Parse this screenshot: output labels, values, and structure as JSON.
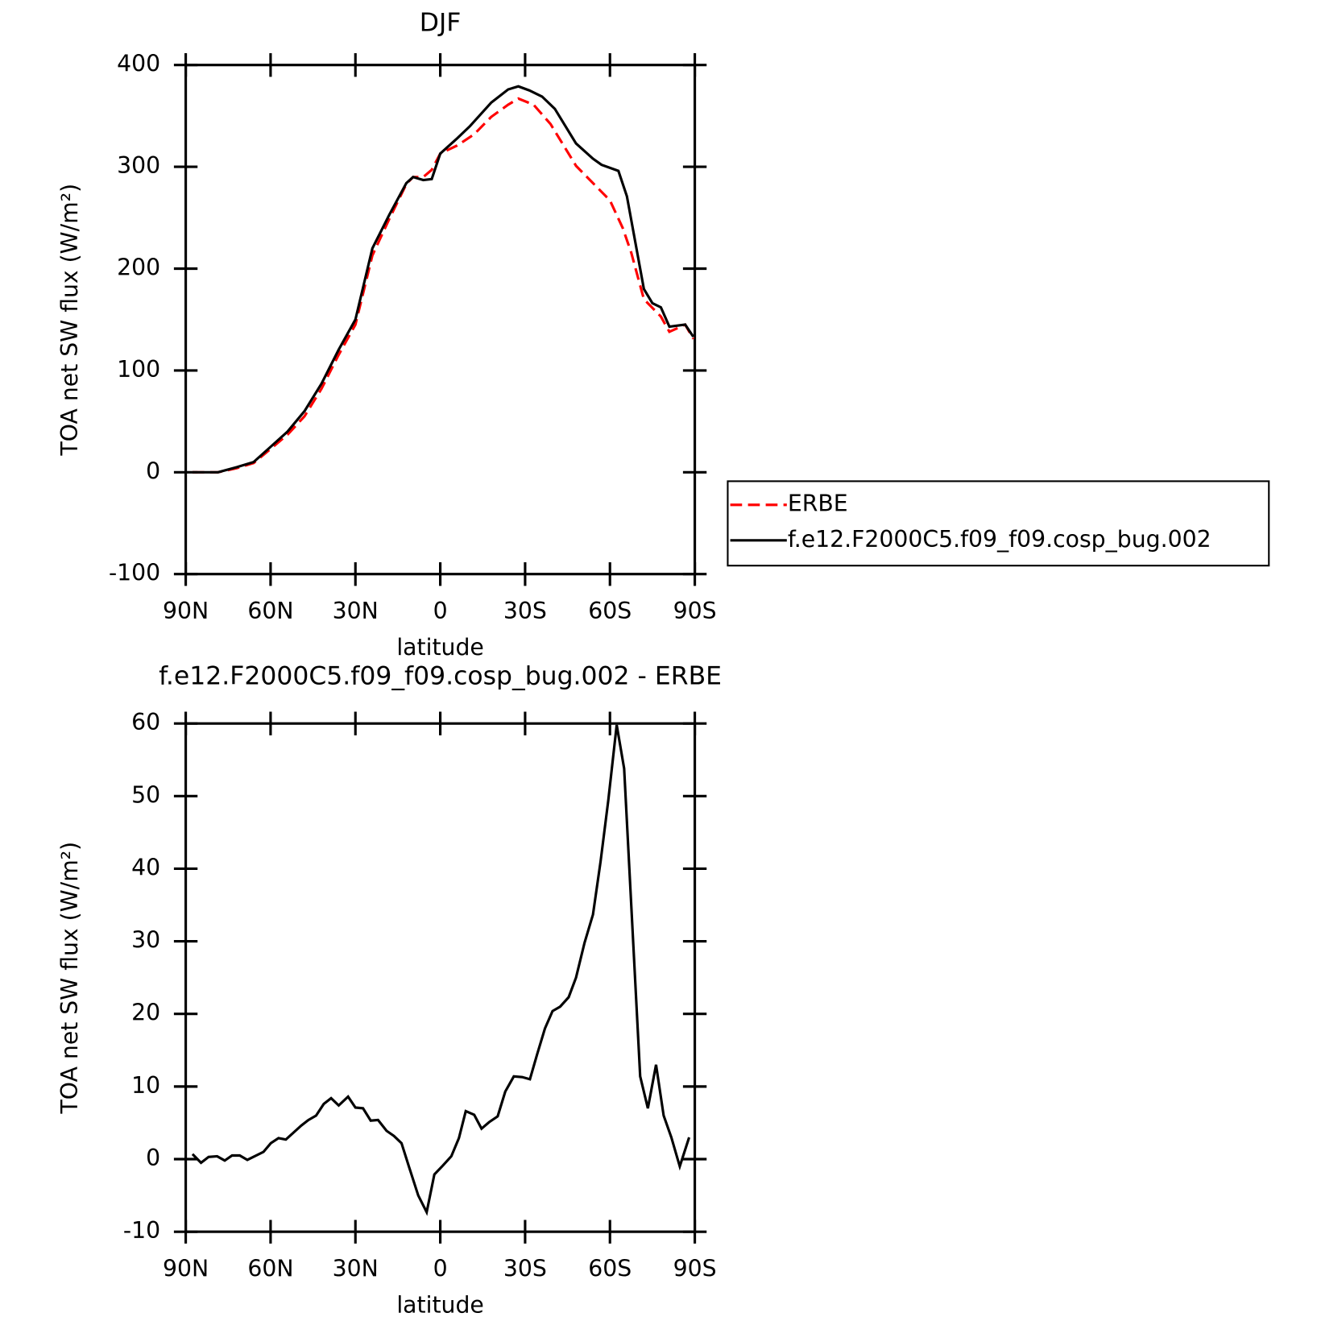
{
  "chart_data": [
    {
      "type": "line",
      "title": "DJF",
      "xlabel": "latitude",
      "ylabel": "TOA net SW flux (W/m²)",
      "xlim": [
        90,
        -90
      ],
      "xticks": [
        {
          "value": 90,
          "label": "90N"
        },
        {
          "value": 60,
          "label": "60N"
        },
        {
          "value": 30,
          "label": "30N"
        },
        0,
        {
          "value": -30,
          "label": "30S"
        },
        {
          "value": -60,
          "label": "60S"
        },
        {
          "value": -90,
          "label": "90S"
        }
      ],
      "ylim": [
        -100,
        400
      ],
      "yticks": [
        -100,
        0,
        100,
        200,
        300,
        400
      ],
      "legend": "right",
      "series": [
        {
          "name": "ERBE",
          "color": "#ff0000",
          "dash": "dashed",
          "x": [
            87.6,
            78.6,
            72,
            66,
            60,
            54,
            48,
            42,
            36,
            30,
            24,
            18,
            12,
            9.6,
            6,
            3,
            0,
            -6,
            -12,
            -18,
            -24,
            -27.6,
            -33,
            -39,
            -48,
            -60,
            -64.5,
            -67.5,
            -72,
            -78,
            -81,
            -86.6,
            -89.5
          ],
          "values": [
            0,
            0,
            4,
            9,
            23,
            37,
            55,
            82,
            115,
            145,
            213,
            249,
            283,
            290,
            290,
            297,
            313,
            321,
            332,
            349,
            361,
            367,
            361,
            342,
            301,
            267,
            240,
            216,
            170,
            153,
            138,
            145,
            131
          ]
        },
        {
          "name": "f.e12.F2000C5.f09_f09.cosp_bug.002",
          "color": "#000000",
          "dash": "solid",
          "x": [
            87.6,
            78.6,
            72,
            66,
            60,
            54,
            48,
            42,
            36,
            30,
            24,
            18,
            12,
            9.6,
            6,
            3,
            0,
            -6,
            -10.5,
            -18,
            -24,
            -27.6,
            -31.5,
            -36,
            -40.5,
            -48,
            -54,
            -57,
            -63,
            -66,
            -72,
            -75,
            -78,
            -81,
            -86.6,
            -89.5
          ],
          "values": [
            0,
            0,
            5,
            10,
            25,
            40,
            60,
            87,
            120,
            150,
            220,
            253,
            284,
            290,
            287,
            288,
            313,
            328,
            340,
            363,
            376,
            379,
            375,
            369,
            357,
            323,
            308,
            302,
            296,
            271,
            180,
            166,
            162,
            143,
            145,
            133
          ]
        }
      ]
    },
    {
      "type": "line",
      "title": "f.e12.F2000C5.f09_f09.cosp_bug.002 - ERBE",
      "xlabel": "latitude",
      "ylabel": "TOA net SW flux (W/m²)",
      "xlim": [
        90,
        -90
      ],
      "xticks": [
        {
          "value": 90,
          "label": "90N"
        },
        {
          "value": 60,
          "label": "60N"
        },
        {
          "value": 30,
          "label": "30N"
        },
        0,
        {
          "value": -30,
          "label": "30S"
        },
        {
          "value": -60,
          "label": "60S"
        },
        {
          "value": -90,
          "label": "90S"
        }
      ],
      "ylim": [
        -10,
        60
      ],
      "yticks": [
        -10,
        0,
        10,
        20,
        30,
        40,
        50,
        60
      ],
      "color": "#000000",
      "x": [
        87.6,
        84.6,
        81.9,
        78.9,
        76.2,
        73.6,
        70.9,
        68.2,
        62.5,
        59.9,
        57.2,
        54.6,
        49.2,
        46.6,
        43.9,
        41.2,
        38.6,
        35.9,
        32.6,
        30,
        27.3,
        24.6,
        22,
        19,
        16.4,
        13.7,
        11,
        7.8,
        4.8,
        2.1,
        -0.9,
        -3.9,
        -6.6,
        -9,
        -12,
        -14.6,
        -17.3,
        -20.3,
        -23,
        -26,
        -29,
        -31.7,
        -34.3,
        -37,
        -39.7,
        -42.4,
        -45.4,
        -48,
        -51,
        -54,
        -56.7,
        -59.4,
        -62.4,
        -65,
        -70.7,
        -73.4,
        -76.3,
        -79,
        -81.7,
        -84.7,
        -88
      ],
      "values": [
        0.7,
        -0.5,
        0.3,
        0.4,
        -0.2,
        0.5,
        0.5,
        -0.1,
        1.0,
        2.2,
        2.9,
        2.7,
        4.6,
        5.4,
        6.0,
        7.6,
        8.4,
        7.4,
        8.6,
        7.1,
        7.0,
        5.3,
        5.4,
        3.9,
        3.2,
        2.2,
        -1.1,
        -5.0,
        -7.3,
        -2.1,
        -0.9,
        0.4,
        2.9,
        6.6,
        6.1,
        4.2,
        5.1,
        5.9,
        9.3,
        11.4,
        11.3,
        11.0,
        14.5,
        18.0,
        20.4,
        21.0,
        22.3,
        25.0,
        29.8,
        33.7,
        41.0,
        49.4,
        59.8,
        53.8,
        11.4,
        7.0,
        13.0,
        6.0,
        3.0,
        -1.0,
        3.0
      ]
    }
  ]
}
